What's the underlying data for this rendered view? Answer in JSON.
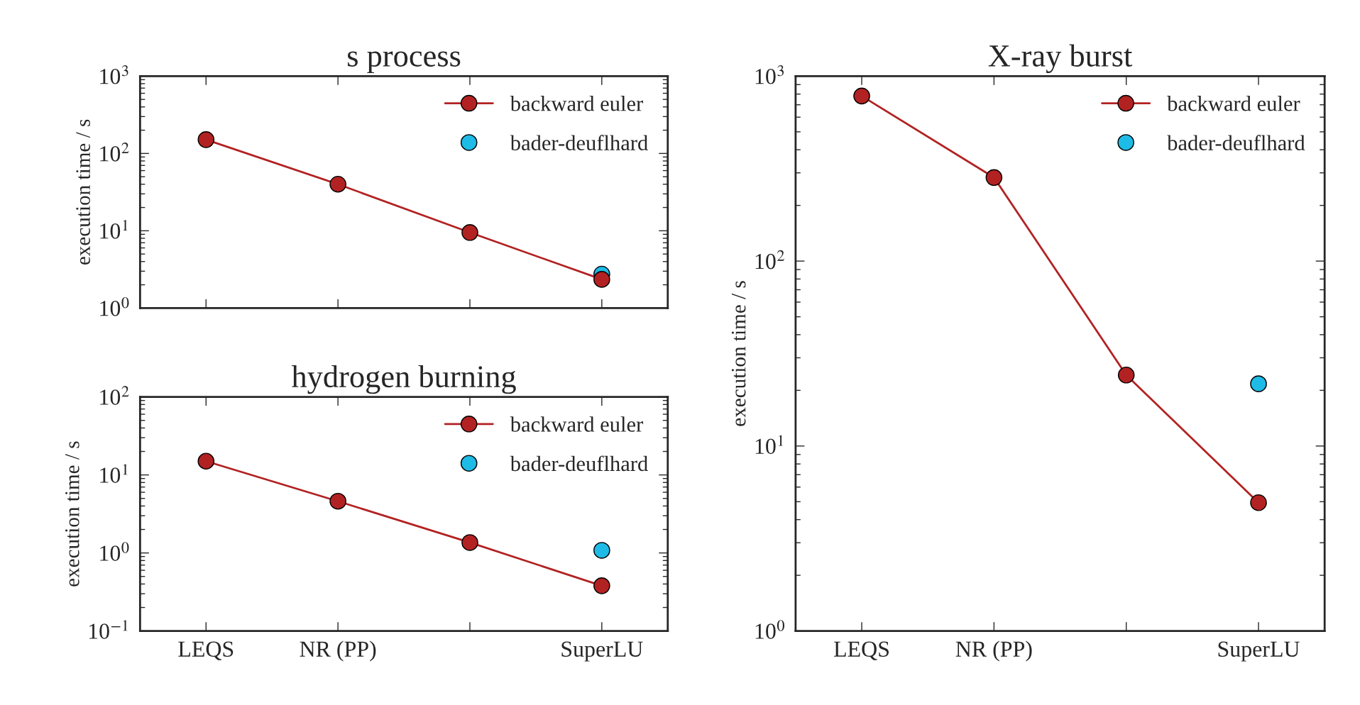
{
  "chart_data": [
    {
      "type": "line",
      "title": "s process",
      "ylabel": "execution time / s",
      "categories": [
        null,
        null,
        null,
        null
      ],
      "log": "y",
      "ylim": [
        1,
        1000
      ],
      "yticks": [
        {
          "value": 1,
          "label": "10$^{0}$"
        },
        {
          "value": 10,
          "label": "10$^{1}$"
        },
        {
          "value": 100,
          "label": "10$^{2}$"
        },
        {
          "value": 1000,
          "label": "10$^{3}$"
        }
      ],
      "tick_labels": "y",
      "legend": "top right",
      "grid": false,
      "marker": "circle",
      "line_style": "solid",
      "series": [
        {
          "name": "backward euler",
          "color": "#b22222",
          "values": [
            151,
            40,
            9.5,
            2.35
          ]
        },
        {
          "name": "bader-deuflhard",
          "type": "scatter",
          "color": "#1ebbe6",
          "values": [
            null,
            null,
            null,
            2.75
          ]
        }
      ]
    },
    {
      "type": "line",
      "title": "hydrogen burning",
      "ylabel": "execution time / s",
      "categories": [
        "LEQS",
        "NR (PP)",
        null,
        "SuperLU"
      ],
      "log": "y",
      "ylim": [
        0.1,
        100
      ],
      "yticks": [
        {
          "value": 0.1,
          "label": "10$^{−1}$"
        },
        {
          "value": 1,
          "label": "10$^{0}$"
        },
        {
          "value": 10,
          "label": "10$^{1}$"
        },
        {
          "value": 100,
          "label": "10$^{2}$"
        }
      ],
      "legend": "top right",
      "grid": false,
      "marker": "circle",
      "line_style": "solid",
      "series": [
        {
          "name": "backward euler",
          "color": "#b22222",
          "values": [
            15,
            4.6,
            1.36,
            0.38
          ]
        },
        {
          "name": "bader-deuflhard",
          "type": "scatter",
          "color": "#1ebbe6",
          "values": [
            null,
            null,
            null,
            1.08
          ]
        }
      ]
    },
    {
      "type": "line",
      "title": "X-ray burst",
      "ylabel": "execution time / s",
      "categories": [
        "LEQS",
        "NR (PP)",
        null,
        "SuperLU"
      ],
      "log": "y",
      "ylim": [
        1,
        1000
      ],
      "yticks": [
        {
          "value": 1,
          "label": "10$^{0}$"
        },
        {
          "value": 10,
          "label": "10$^{1}$"
        },
        {
          "value": 100,
          "label": "10$^{2}$"
        },
        {
          "value": 1000,
          "label": "10$^{3}$"
        }
      ],
      "legend": "top right",
      "grid": false,
      "marker": "circle",
      "line_style": "solid",
      "series": [
        {
          "name": "backward euler",
          "color": "#b22222",
          "values": [
            781,
            283,
            24.2,
            4.94
          ]
        },
        {
          "name": "bader-deuflhard",
          "type": "scatter",
          "color": "#1ebbe6",
          "values": [
            null,
            null,
            null,
            21.7
          ]
        }
      ]
    }
  ]
}
